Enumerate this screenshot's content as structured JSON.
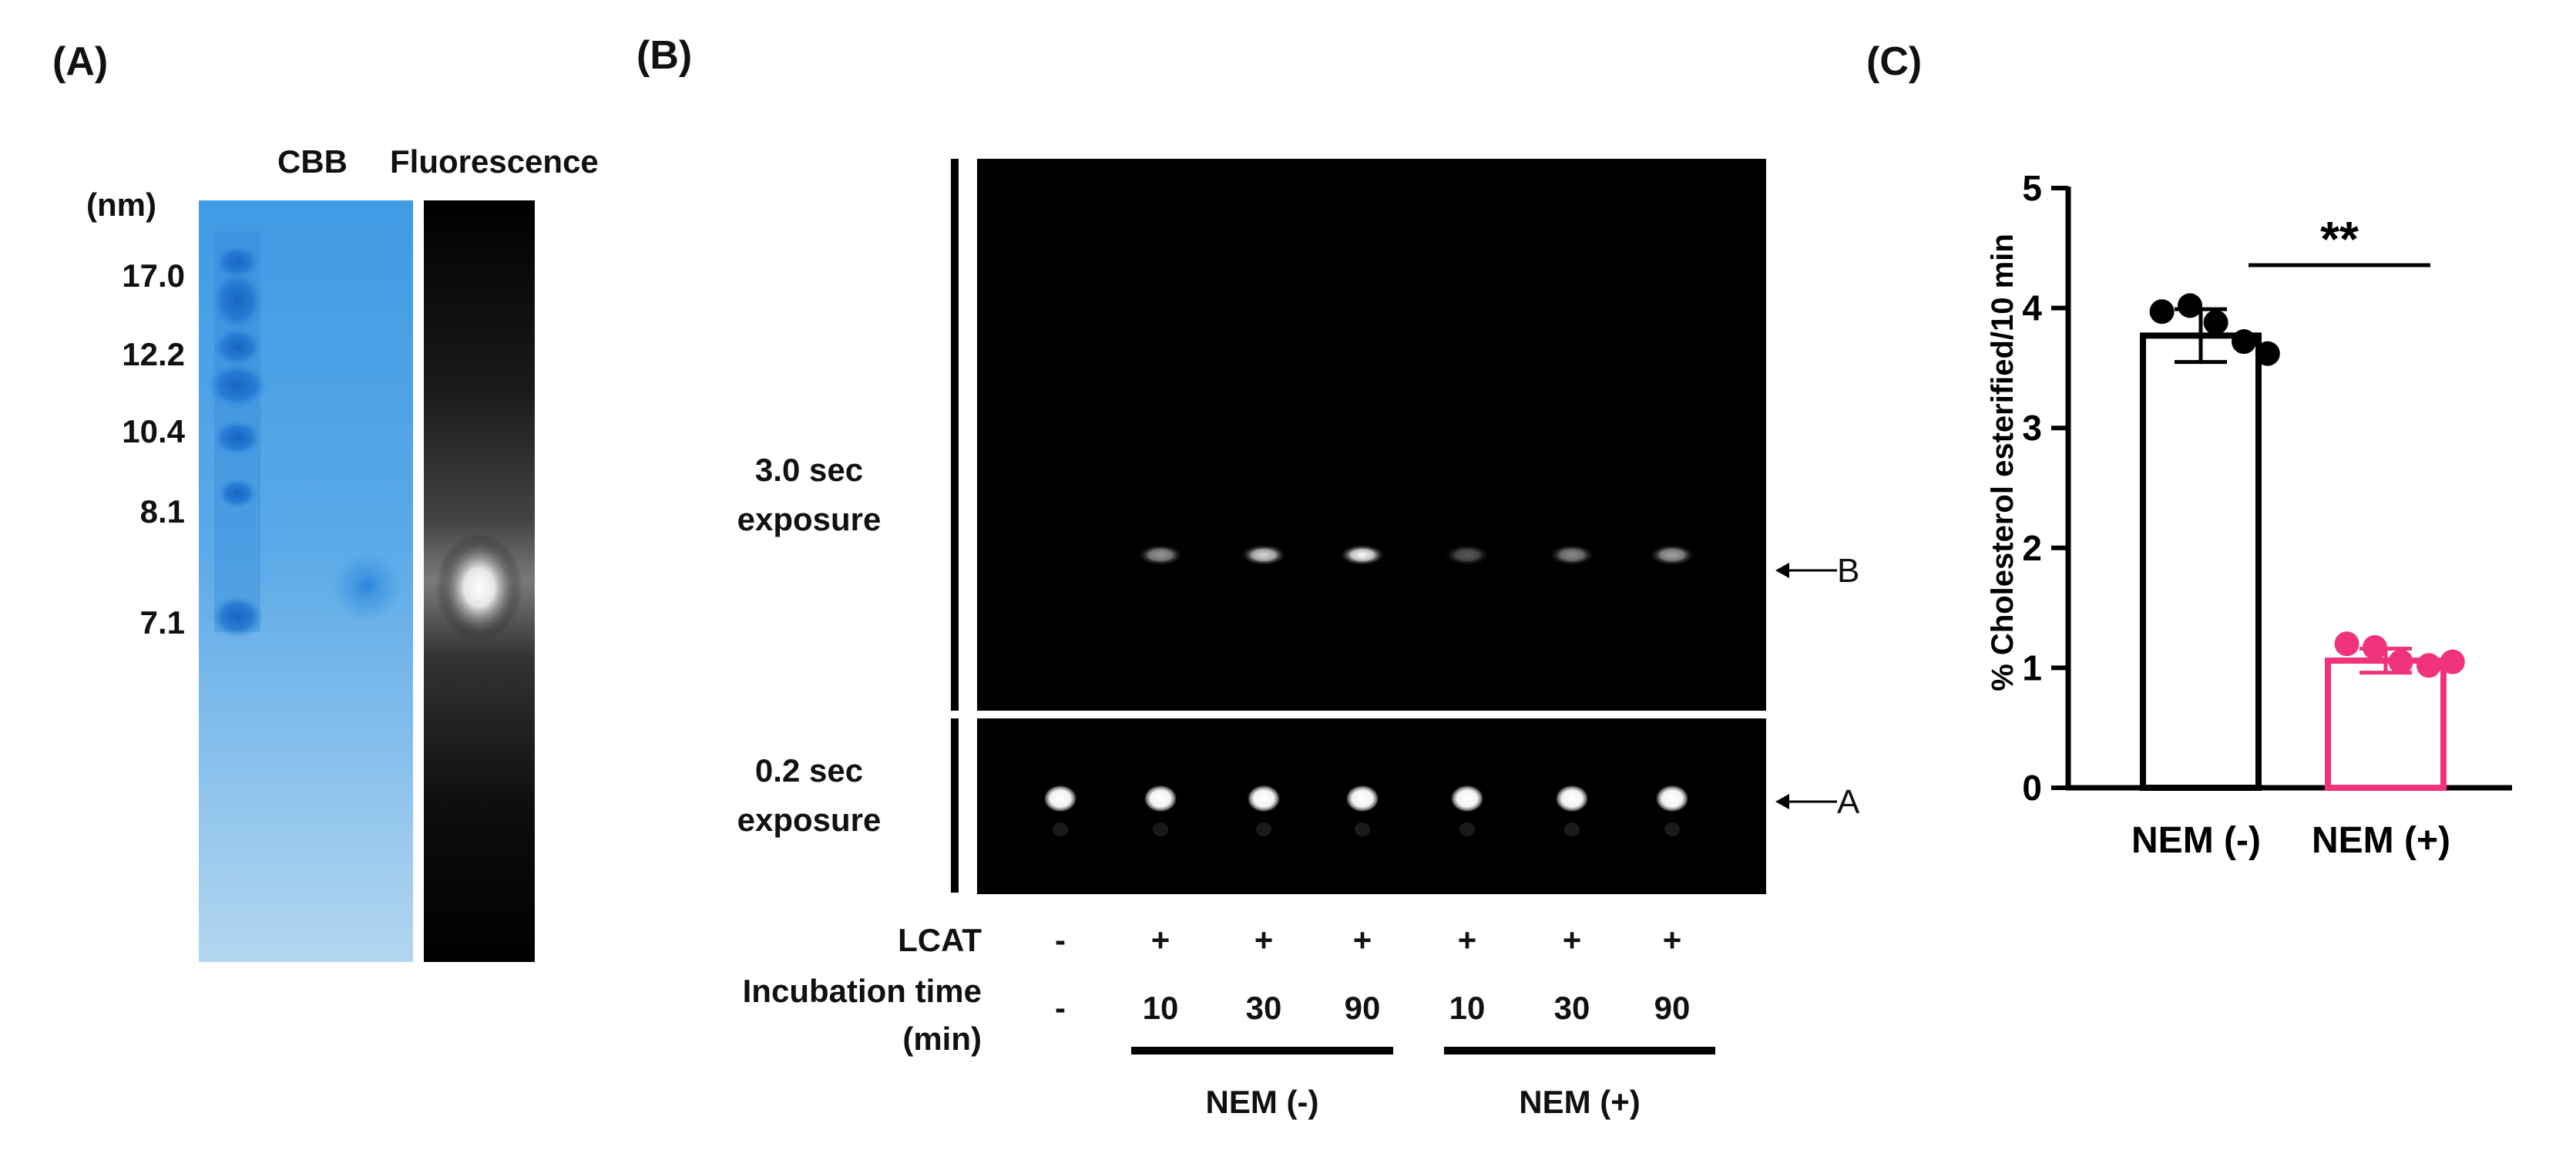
{
  "panel_a": {
    "label": "(A)",
    "unit_label": "(nm)",
    "markers": [
      "17.0",
      "12.2",
      "10.4",
      "8.1",
      "7.1"
    ],
    "lane_labels": {
      "cbb": "CBB",
      "fluorescence": "Fluorescence"
    },
    "colors": {
      "gel_blue": "#3f9be4",
      "gel_light": "#9ccaee",
      "band_dark": "#0a52b8"
    }
  },
  "panel_b": {
    "label": "(B)",
    "top_exposure": {
      "line1": "3.0 sec",
      "line2": "exposure"
    },
    "bottom_exposure": {
      "line1": "0.2 sec",
      "line2": "exposure"
    },
    "arrow_b": "B",
    "arrow_a": "A",
    "row_lcat": {
      "label": "LCAT",
      "values": [
        "-",
        "+",
        "+",
        "+",
        "+",
        "+",
        "+"
      ]
    },
    "row_time": {
      "label_line1": "Incubation time",
      "label_line2": "(min)",
      "values": [
        "-",
        "10",
        "30",
        "90",
        "10",
        "30",
        "90"
      ]
    },
    "groups": [
      "NEM (-)",
      "NEM (+)"
    ],
    "band_b_intensity": [
      0,
      0.6,
      0.85,
      1.0,
      0.35,
      0.55,
      0.65
    ],
    "band_a_intensity": [
      1,
      1,
      1,
      1,
      1,
      1,
      1
    ]
  },
  "panel_c": {
    "label": "(C)",
    "significance": "**",
    "chart_data": {
      "type": "bar",
      "categories": [
        "NEM (-)",
        "NEM (+)"
      ],
      "values": [
        3.77,
        1.06
      ],
      "error_sd": [
        0.22,
        0.1
      ],
      "points": [
        [
          3.97,
          4.02,
          3.88,
          3.72,
          3.62
        ],
        [
          1.2,
          1.17,
          1.05,
          1.02,
          1.05
        ]
      ],
      "bar_fill": [
        "#ffffff",
        "#ffffff"
      ],
      "bar_edge": [
        "#000000",
        "#f0337a"
      ],
      "point_color": [
        "#000000",
        "#f0337a"
      ],
      "ylabel": "% Cholesterol esterified/10 min",
      "xlabel": "",
      "ylim": [
        0,
        5
      ],
      "yticks": [
        "0",
        "1",
        "2",
        "3",
        "4",
        "5"
      ],
      "grid": false
    }
  }
}
